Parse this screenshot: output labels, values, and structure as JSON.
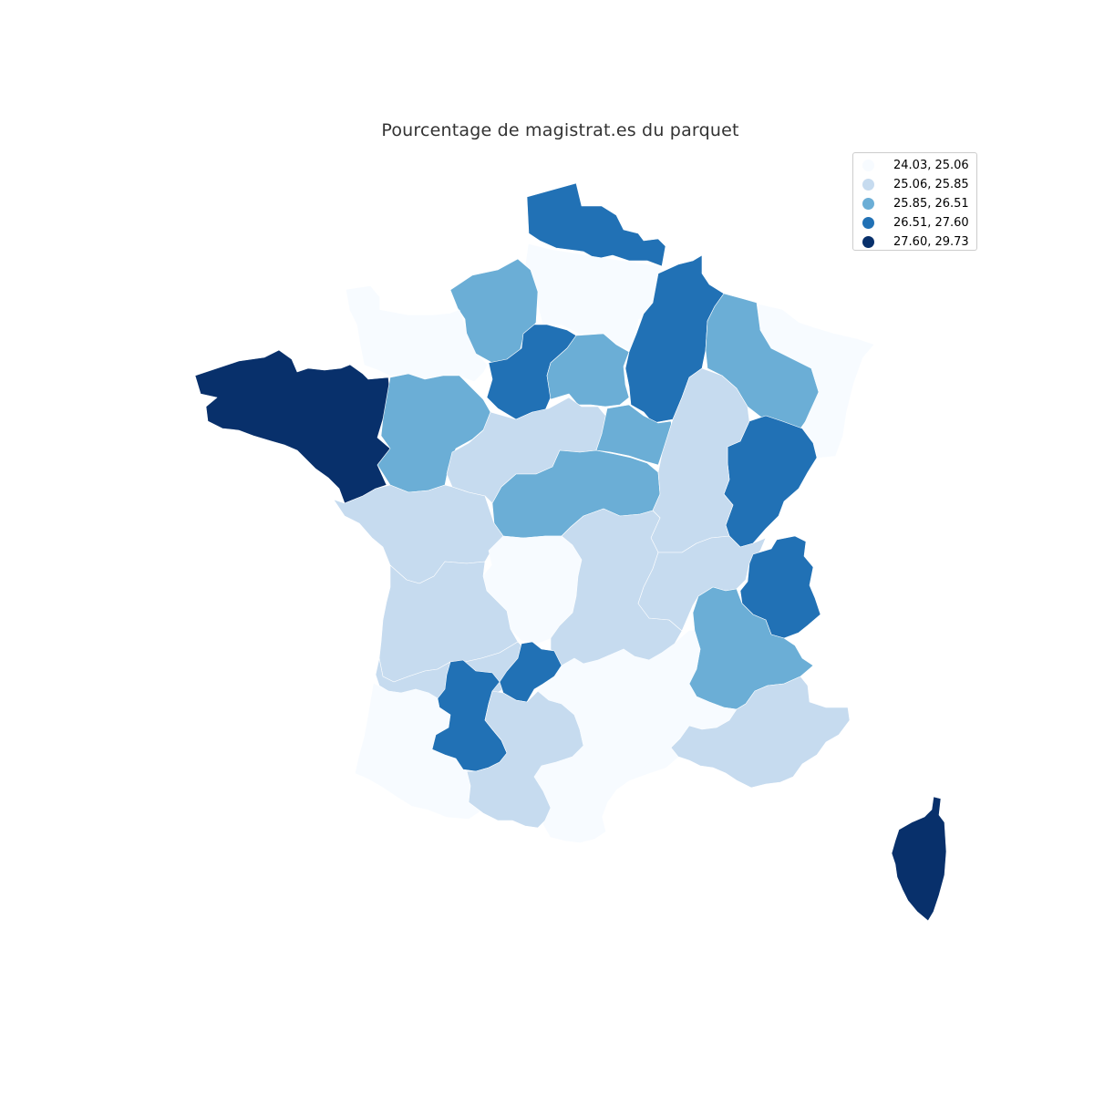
{
  "map": {
    "title": "Pourcentage de magistrat.es du parquet",
    "classification": "quantiles",
    "colormap": "Blues"
  },
  "legend": {
    "placement": "top-right",
    "items": [
      {
        "label": "24.03, 25.06",
        "color": "#f7fbff"
      },
      {
        "label": "25.06, 25.85",
        "color": "#c6dbef"
      },
      {
        "label": "25.85, 26.51",
        "color": "#6baed6"
      },
      {
        "label": "26.51, 27.60",
        "color": "#2171b5"
      },
      {
        "label": "27.60, 29.73",
        "color": "#08306b"
      }
    ]
  },
  "regions": [
    {
      "id": "r-north",
      "cls": 3
    },
    {
      "id": "r-picardie",
      "cls": 0
    },
    {
      "id": "r-normandie-east",
      "cls": 2
    },
    {
      "id": "r-normandie-west",
      "cls": 0
    },
    {
      "id": "r-bretagne",
      "cls": 4
    },
    {
      "id": "r-pays-loire-north",
      "cls": 2
    },
    {
      "id": "r-idf-west",
      "cls": 3
    },
    {
      "id": "r-idf-east",
      "cls": 2
    },
    {
      "id": "r-champagne",
      "cls": 3
    },
    {
      "id": "r-lorraine",
      "cls": 2
    },
    {
      "id": "r-alsace",
      "cls": 0
    },
    {
      "id": "r-centre",
      "cls": 1
    },
    {
      "id": "r-bourgogne-north",
      "cls": 2
    },
    {
      "id": "r-bourgogne-south",
      "cls": 2
    },
    {
      "id": "r-franche-comte",
      "cls": 3
    },
    {
      "id": "r-bourgogne-east",
      "cls": 1
    },
    {
      "id": "r-vendee",
      "cls": 1
    },
    {
      "id": "r-limousin",
      "cls": 0
    },
    {
      "id": "r-poitou",
      "cls": 1
    },
    {
      "id": "r-auvergne",
      "cls": 1
    },
    {
      "id": "r-rhone",
      "cls": 1
    },
    {
      "id": "r-savoie",
      "cls": 3
    },
    {
      "id": "r-dauphine",
      "cls": 2
    },
    {
      "id": "r-aquitaine-north",
      "cls": 1
    },
    {
      "id": "r-aquitaine-south",
      "cls": 0
    },
    {
      "id": "r-agen",
      "cls": 3
    },
    {
      "id": "r-quercy",
      "cls": 3
    },
    {
      "id": "r-toulouse",
      "cls": 1
    },
    {
      "id": "r-pyrenees-east",
      "cls": 0
    },
    {
      "id": "r-languedoc",
      "cls": 0
    },
    {
      "id": "r-provence",
      "cls": 1
    },
    {
      "id": "r-corse",
      "cls": 4
    }
  ]
}
